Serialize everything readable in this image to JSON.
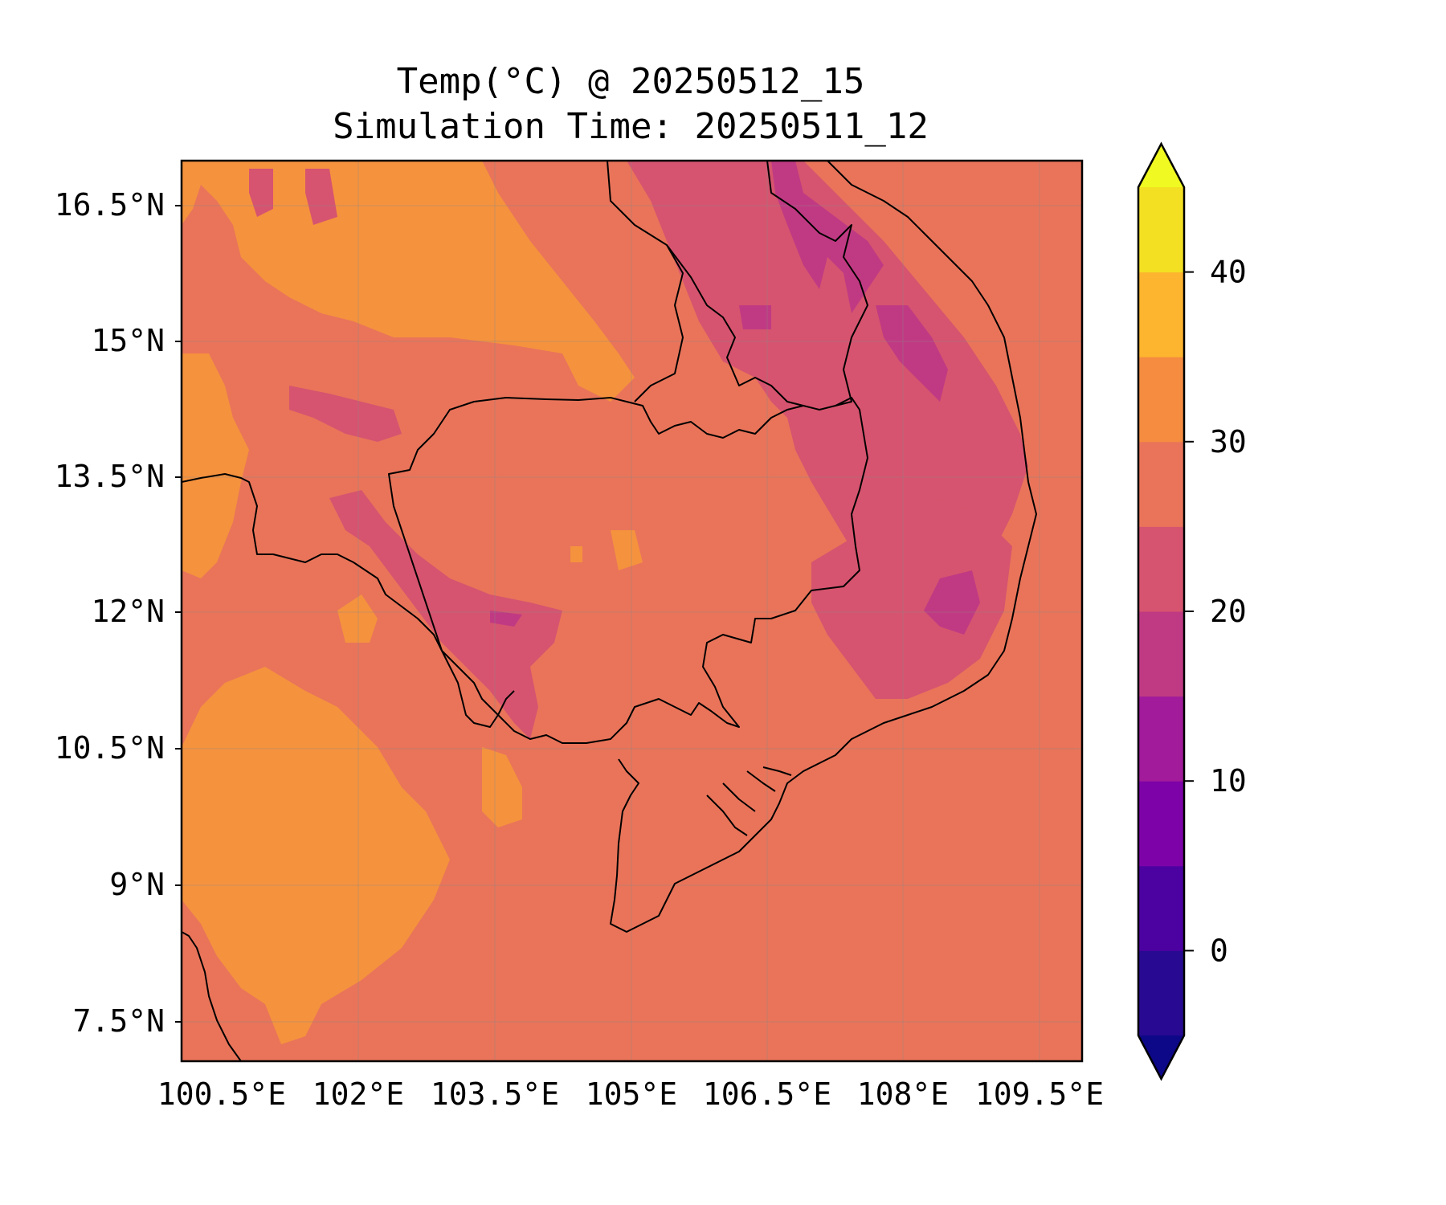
{
  "title_line1": "Temp(°C) @ 20250512_15",
  "title_line2": "Simulation Time: 20250511_12",
  "map": {
    "x_ticks": [
      "100.5°E",
      "102°E",
      "103.5°E",
      "105°E",
      "106.5°E",
      "108°E",
      "109.5°E"
    ],
    "y_ticks": [
      "16.5°N",
      "15°N",
      "13.5°N",
      "12°N",
      "10.5°N",
      "9°N",
      "7.5°N"
    ],
    "extent": {
      "lon_min": 100.5,
      "lon_max": 110.5,
      "lat_min": 7.1,
      "lat_max": 17.0
    },
    "gridlines": true
  },
  "colorbar": {
    "levels": [
      -5,
      0,
      5,
      10,
      15,
      20,
      25,
      30,
      35,
      40,
      45
    ],
    "colors": [
      "#270a91",
      "#4c02a1",
      "#7d03a8",
      "#a11b9b",
      "#c03a83",
      "#d6546f",
      "#e9745a",
      "#f58c40",
      "#fdb42f",
      "#f3e022"
    ],
    "under_color": "#0d0887",
    "over_color": "#f0f921",
    "extend": "both",
    "tick_values": [
      0,
      10,
      20,
      30,
      40
    ],
    "tick_labels": [
      "0",
      "10",
      "20",
      "30",
      "40"
    ]
  },
  "colors": {
    "base_field": "#e9745a",
    "warm_field": "#f5923e",
    "cool_field": "#d6546f",
    "cooler_field": "#c03a83"
  }
}
